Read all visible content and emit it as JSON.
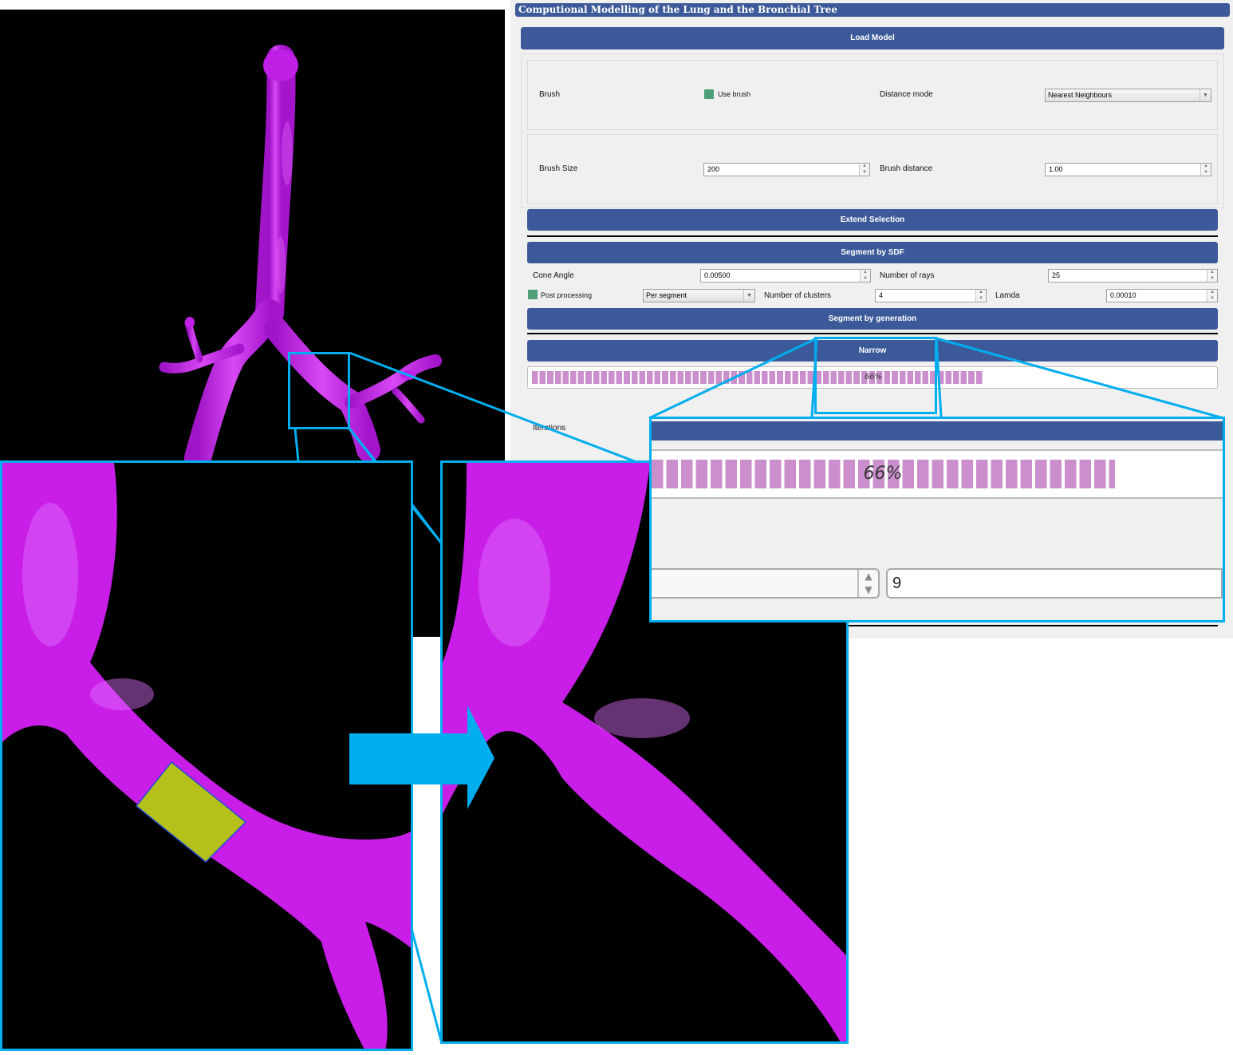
{
  "app": {
    "title": "Computional Modelling of the Lung and the Bronchial Tree"
  },
  "buttons": {
    "load_model": "Load Model",
    "extend_selection": "Extend Selection",
    "segment_sdf": "Segment by SDF",
    "segment_generation": "Segment by generation",
    "narrow": "Narrow"
  },
  "brush": {
    "label": "Brush",
    "use_brush_label": "Use brush",
    "use_brush_checked": true,
    "distance_mode_label": "Distance mode",
    "distance_mode_value": "Nearest Neighbours",
    "brush_size_label": "Brush Size",
    "brush_size_value": "200",
    "brush_distance_label": "Brush distance",
    "brush_distance_value": "1.00"
  },
  "sdf": {
    "cone_angle_label": "Cone Angle",
    "cone_angle_value": "0.00500",
    "rays_label": "Number of rays",
    "rays_value": "25",
    "post_processing_label": "Post processing",
    "post_processing_checked": true,
    "per_segment_value": "Per segment",
    "clusters_label": "Number of clusters",
    "clusters_value": "4",
    "lamda_label": "Lamda",
    "lamda_value": "0.00010"
  },
  "progress": {
    "text": "66%",
    "fraction": 0.66
  },
  "iterations": {
    "label": "Iterations",
    "value": "9"
  },
  "colors": {
    "accent_blue": "#3c5a99",
    "callout": "#00aeef",
    "mesh": "#c020e6",
    "selection": "#b5c01a",
    "progress_chunk": "#cc8fcd",
    "checkbox": "#4fa07a"
  }
}
